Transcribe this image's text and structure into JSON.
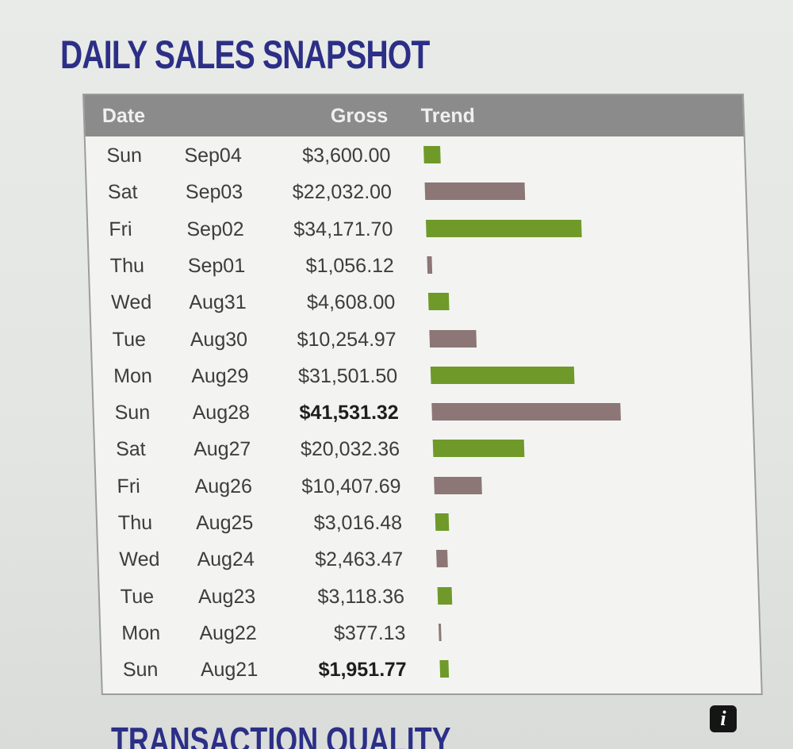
{
  "page_title": "DAILY SALES SNAPSHOT",
  "table": {
    "columns": {
      "date": "Date",
      "gross": "Gross",
      "trend": "Trend"
    },
    "rows": [
      {
        "day": "Sun",
        "date": "Sep04",
        "gross": "$3,600.00",
        "value": 3600.0,
        "bold": false,
        "color": "#6f9a2a"
      },
      {
        "day": "Sat",
        "date": "Sep03",
        "gross": "$22,032.00",
        "value": 22032.0,
        "bold": false,
        "color": "#8c7676"
      },
      {
        "day": "Fri",
        "date": "Sep02",
        "gross": "$34,171.70",
        "value": 34171.7,
        "bold": false,
        "color": "#6f9a2a"
      },
      {
        "day": "Thu",
        "date": "Sep01",
        "gross": "$1,056.12",
        "value": 1056.12,
        "bold": false,
        "color": "#8c7676"
      },
      {
        "day": "Wed",
        "date": "Aug31",
        "gross": "$4,608.00",
        "value": 4608.0,
        "bold": false,
        "color": "#6f9a2a"
      },
      {
        "day": "Tue",
        "date": "Aug30",
        "gross": "$10,254.97",
        "value": 10254.97,
        "bold": false,
        "color": "#8c7676"
      },
      {
        "day": "Mon",
        "date": "Aug29",
        "gross": "$31,501.50",
        "value": 31501.5,
        "bold": false,
        "color": "#6f9a2a"
      },
      {
        "day": "Sun",
        "date": "Aug28",
        "gross": "$41,531.32",
        "value": 41531.32,
        "bold": true,
        "color": "#8c7676"
      },
      {
        "day": "Sat",
        "date": "Aug27",
        "gross": "$20,032.36",
        "value": 20032.36,
        "bold": false,
        "color": "#6f9a2a"
      },
      {
        "day": "Fri",
        "date": "Aug26",
        "gross": "$10,407.69",
        "value": 10407.69,
        "bold": false,
        "color": "#8c7676"
      },
      {
        "day": "Thu",
        "date": "Aug25",
        "gross": "$3,016.48",
        "value": 3016.48,
        "bold": false,
        "color": "#6f9a2a"
      },
      {
        "day": "Wed",
        "date": "Aug24",
        "gross": "$2,463.47",
        "value": 2463.47,
        "bold": false,
        "color": "#8c7676"
      },
      {
        "day": "Tue",
        "date": "Aug23",
        "gross": "$3,118.36",
        "value": 3118.36,
        "bold": false,
        "color": "#6f9a2a"
      },
      {
        "day": "Mon",
        "date": "Aug22",
        "gross": "$377.13",
        "value": 377.13,
        "bold": false,
        "color": "#8c7676"
      },
      {
        "day": "Sun",
        "date": "Aug21",
        "gross": "$1,951.77",
        "value": 1951.77,
        "bold": true,
        "color": "#6f9a2a"
      }
    ]
  },
  "info_icon": {
    "icon": "info-icon",
    "glyph": "i"
  },
  "next_section_title": "TRANSACTION QUALITY"
}
